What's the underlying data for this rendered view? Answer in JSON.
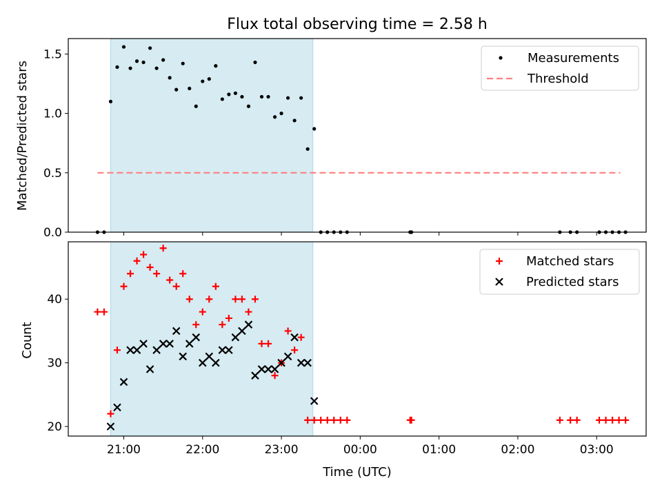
{
  "chart_data": {
    "type": "scatter",
    "title": "Flux total observing time = 2.58 h",
    "xlabel": "Time (UTC)",
    "x_axis": {
      "ticks": [
        "21:00",
        "22:00",
        "23:00",
        "00:00",
        "01:00",
        "02:00",
        "03:00"
      ]
    },
    "observing_window": [
      "20:50",
      "23:24"
    ],
    "panels": [
      {
        "ylabel": "Matched/Predicted stars",
        "ylim": [
          0,
          1.63
        ],
        "yticks": [
          "0.0",
          "0.5",
          "1.0",
          "1.5"
        ],
        "legend": "top-right",
        "series": [
          {
            "name": "Measurements",
            "marker": "dot",
            "color": "#000000",
            "points": [
              [
                "20:40",
                0
              ],
              [
                "20:45",
                0
              ],
              [
                "20:50",
                1.1
              ],
              [
                "20:55",
                1.39
              ],
              [
                "21:00",
                1.56
              ],
              [
                "21:05",
                1.38
              ],
              [
                "21:10",
                1.44
              ],
              [
                "21:15",
                1.43
              ],
              [
                "21:20",
                1.55
              ],
              [
                "21:25",
                1.38
              ],
              [
                "21:30",
                1.45
              ],
              [
                "21:35",
                1.3
              ],
              [
                "21:40",
                1.2
              ],
              [
                "21:45",
                1.42
              ],
              [
                "21:50",
                1.21
              ],
              [
                "21:55",
                1.06
              ],
              [
                "22:00",
                1.27
              ],
              [
                "22:05",
                1.29
              ],
              [
                "22:10",
                1.4
              ],
              [
                "22:15",
                1.12
              ],
              [
                "22:20",
                1.16
              ],
              [
                "22:25",
                1.17
              ],
              [
                "22:30",
                1.14
              ],
              [
                "22:35",
                1.06
              ],
              [
                "22:40",
                1.43
              ],
              [
                "22:45",
                1.14
              ],
              [
                "22:50",
                1.14
              ],
              [
                "22:55",
                0.97
              ],
              [
                "23:00",
                1.0
              ],
              [
                "23:05",
                1.13
              ],
              [
                "23:10",
                0.94
              ],
              [
                "23:15",
                1.13
              ],
              [
                "23:20",
                0.7
              ],
              [
                "23:25",
                0.87
              ],
              [
                "23:30",
                0
              ],
              [
                "23:35",
                0
              ],
              [
                "23:40",
                0
              ],
              [
                "23:45",
                0
              ],
              [
                "23:50",
                0
              ],
              [
                "00:38",
                0
              ],
              [
                "00:39",
                0
              ],
              [
                "02:32",
                0
              ],
              [
                "02:40",
                0
              ],
              [
                "02:45",
                0
              ],
              [
                "03:02",
                0
              ],
              [
                "03:07",
                0
              ],
              [
                "03:12",
                0
              ],
              [
                "03:17",
                0
              ],
              [
                "03:22",
                0
              ]
            ]
          },
          {
            "name": "Threshold",
            "marker": "dashed-line",
            "color": "#ff7f7f",
            "points": [
              [
                "20:40",
                0.5
              ],
              [
                "03:18",
                0.5
              ]
            ]
          }
        ]
      },
      {
        "ylabel": "Count",
        "ylim": [
          18.5,
          49
        ],
        "yticks": [
          "20",
          "30",
          "40"
        ],
        "legend": "top-right",
        "series": [
          {
            "name": "Matched stars",
            "marker": "plus",
            "color": "#ff0000",
            "points": [
              [
                "20:40",
                38
              ],
              [
                "20:45",
                38
              ],
              [
                "20:50",
                22
              ],
              [
                "20:55",
                32
              ],
              [
                "21:00",
                42
              ],
              [
                "21:05",
                44
              ],
              [
                "21:10",
                46
              ],
              [
                "21:15",
                47
              ],
              [
                "21:20",
                45
              ],
              [
                "21:25",
                44
              ],
              [
                "21:30",
                48
              ],
              [
                "21:35",
                43
              ],
              [
                "21:40",
                42
              ],
              [
                "21:45",
                44
              ],
              [
                "21:50",
                40
              ],
              [
                "21:55",
                36
              ],
              [
                "22:00",
                38
              ],
              [
                "22:05",
                40
              ],
              [
                "22:10",
                42
              ],
              [
                "22:15",
                36
              ],
              [
                "22:20",
                37
              ],
              [
                "22:25",
                40
              ],
              [
                "22:30",
                40
              ],
              [
                "22:35",
                38
              ],
              [
                "22:40",
                40
              ],
              [
                "22:45",
                33
              ],
              [
                "22:50",
                33
              ],
              [
                "22:55",
                28
              ],
              [
                "23:00",
                30
              ],
              [
                "23:05",
                35
              ],
              [
                "23:10",
                32
              ],
              [
                "23:15",
                34
              ],
              [
                "23:20",
                21
              ],
              [
                "23:25",
                21
              ],
              [
                "23:30",
                21
              ],
              [
                "23:35",
                21
              ],
              [
                "23:40",
                21
              ],
              [
                "23:45",
                21
              ],
              [
                "23:50",
                21
              ],
              [
                "00:38",
                21
              ],
              [
                "00:39",
                21
              ],
              [
                "02:32",
                21
              ],
              [
                "02:40",
                21
              ],
              [
                "02:45",
                21
              ],
              [
                "03:02",
                21
              ],
              [
                "03:07",
                21
              ],
              [
                "03:12",
                21
              ],
              [
                "03:17",
                21
              ],
              [
                "03:22",
                21
              ]
            ]
          },
          {
            "name": "Predicted stars",
            "marker": "x",
            "color": "#000000",
            "points": [
              [
                "20:50",
                20
              ],
              [
                "20:55",
                23
              ],
              [
                "21:00",
                27
              ],
              [
                "21:05",
                32
              ],
              [
                "21:10",
                32
              ],
              [
                "21:15",
                33
              ],
              [
                "21:20",
                29
              ],
              [
                "21:25",
                32
              ],
              [
                "21:30",
                33
              ],
              [
                "21:35",
                33
              ],
              [
                "21:40",
                35
              ],
              [
                "21:45",
                31
              ],
              [
                "21:50",
                33
              ],
              [
                "21:55",
                34
              ],
              [
                "22:00",
                30
              ],
              [
                "22:05",
                31
              ],
              [
                "22:10",
                30
              ],
              [
                "22:15",
                32
              ],
              [
                "22:20",
                32
              ],
              [
                "22:25",
                34
              ],
              [
                "22:30",
                35
              ],
              [
                "22:35",
                36
              ],
              [
                "22:40",
                28
              ],
              [
                "22:45",
                29
              ],
              [
                "22:50",
                29
              ],
              [
                "22:55",
                29
              ],
              [
                "23:00",
                30
              ],
              [
                "23:05",
                31
              ],
              [
                "23:10",
                34
              ],
              [
                "23:15",
                30
              ],
              [
                "23:20",
                30
              ],
              [
                "23:25",
                24
              ]
            ]
          }
        ]
      }
    ]
  }
}
